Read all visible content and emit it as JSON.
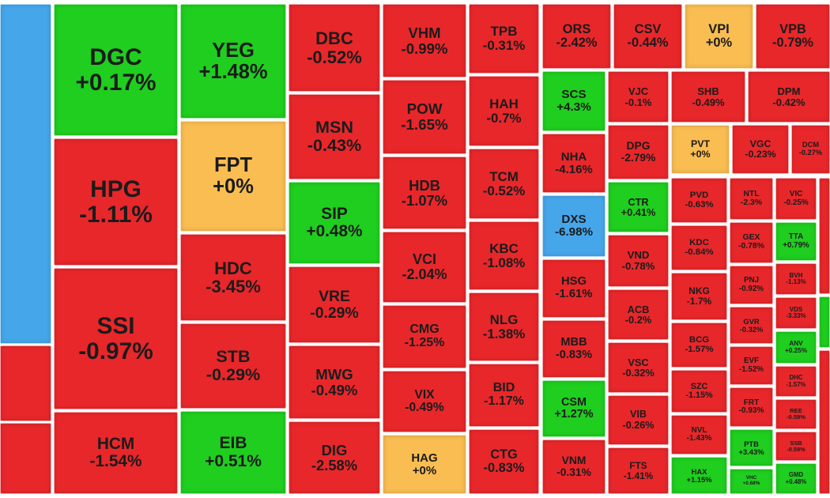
{
  "heatmap": {
    "tiles": [
      {
        "color": "#46a6ea"
      },
      {
        "color": "#e8272b"
      },
      {
        "color": "#e8272b"
      },
      {
        "ticker": "DGC",
        "change": "+0.17%",
        "color": "#1fce1f"
      },
      {
        "ticker": "HPG",
        "change": "-1.11%",
        "color": "#e8272b"
      },
      {
        "ticker": "SSI",
        "change": "-0.97%",
        "color": "#e8272b"
      },
      {
        "ticker": "HCM",
        "change": "-1.54%",
        "color": "#e8272b"
      },
      {
        "ticker": "YEG",
        "change": "+1.48%",
        "color": "#1fce1f"
      },
      {
        "ticker": "FPT",
        "change": "+0%",
        "color": "#f9bd52"
      },
      {
        "ticker": "HDC",
        "change": "-3.45%",
        "color": "#e8272b"
      },
      {
        "ticker": "STB",
        "change": "-0.29%",
        "color": "#e8272b"
      },
      {
        "ticker": "EIB",
        "change": "+0.51%",
        "color": "#1fce1f"
      },
      {
        "ticker": "DBC",
        "change": "-0.52%",
        "color": "#e8272b"
      },
      {
        "ticker": "MSN",
        "change": "-0.43%",
        "color": "#e8272b"
      },
      {
        "ticker": "SIP",
        "change": "+0.48%",
        "color": "#1fce1f"
      },
      {
        "ticker": "VRE",
        "change": "-0.29%",
        "color": "#e8272b"
      },
      {
        "ticker": "MWG",
        "change": "-0.49%",
        "color": "#e8272b"
      },
      {
        "ticker": "DIG",
        "change": "-2.58%",
        "color": "#e8272b"
      },
      {
        "ticker": "VHM",
        "change": "-0.99%",
        "color": "#e8272b"
      },
      {
        "ticker": "POW",
        "change": "-1.65%",
        "color": "#e8272b"
      },
      {
        "ticker": "HDB",
        "change": "-1.07%",
        "color": "#e8272b"
      },
      {
        "ticker": "VCI",
        "change": "-2.04%",
        "color": "#e8272b"
      },
      {
        "ticker": "CMG",
        "change": "-1.25%",
        "color": "#e8272b"
      },
      {
        "ticker": "VIX",
        "change": "-0.49%",
        "color": "#e8272b"
      },
      {
        "ticker": "HAG",
        "change": "+0%",
        "color": "#f9bd52"
      },
      {
        "ticker": "TPB",
        "change": "-0.31%",
        "color": "#e8272b"
      },
      {
        "ticker": "HAH",
        "change": "-0.7%",
        "color": "#e8272b"
      },
      {
        "ticker": "TCM",
        "change": "-0.52%",
        "color": "#e8272b"
      },
      {
        "ticker": "KBC",
        "change": "-1.08%",
        "color": "#e8272b"
      },
      {
        "ticker": "NLG",
        "change": "-1.38%",
        "color": "#e8272b"
      },
      {
        "ticker": "BID",
        "change": "-1.17%",
        "color": "#e8272b"
      },
      {
        "ticker": "CTG",
        "change": "-0.83%",
        "color": "#e8272b"
      },
      {
        "ticker": "ORS",
        "change": "-2.42%",
        "color": "#e8272b"
      },
      {
        "ticker": "CSV",
        "change": "-0.44%",
        "color": "#e8272b"
      },
      {
        "ticker": "VPI",
        "change": "+0%",
        "color": "#f9bd52"
      },
      {
        "ticker": "VPB",
        "change": "-0.79%",
        "color": "#e8272b"
      },
      {
        "ticker": "SCS",
        "change": "+4.3%",
        "color": "#1fce1f"
      },
      {
        "ticker": "NHA",
        "change": "-4.16%",
        "color": "#e8272b"
      },
      {
        "ticker": "DXS",
        "change": "-6.98%",
        "color": "#46a6ea"
      },
      {
        "ticker": "HSG",
        "change": "-1.61%",
        "color": "#e8272b"
      },
      {
        "ticker": "MBB",
        "change": "-0.83%",
        "color": "#e8272b"
      },
      {
        "ticker": "CSM",
        "change": "+1.27%",
        "color": "#1fce1f"
      },
      {
        "ticker": "VNM",
        "change": "-0.31%",
        "color": "#e8272b"
      },
      {
        "ticker": "VJC",
        "change": "-0.1%",
        "color": "#e8272b"
      },
      {
        "ticker": "DPG",
        "change": "-2.79%",
        "color": "#e8272b"
      },
      {
        "ticker": "CTR",
        "change": "+0.41%",
        "color": "#1fce1f"
      },
      {
        "ticker": "VND",
        "change": "-0.78%",
        "color": "#e8272b"
      },
      {
        "ticker": "ACB",
        "change": "-0.2%",
        "color": "#e8272b"
      },
      {
        "ticker": "VSC",
        "change": "-0.32%",
        "color": "#e8272b"
      },
      {
        "ticker": "VIB",
        "change": "-0.26%",
        "color": "#e8272b"
      },
      {
        "ticker": "FTS",
        "change": "-1.41%",
        "color": "#e8272b"
      },
      {
        "ticker": "SHB",
        "change": "-0.49%",
        "color": "#e8272b"
      },
      {
        "ticker": "DPM",
        "change": "-0.42%",
        "color": "#e8272b"
      },
      {
        "ticker": "PVT",
        "change": "+0%",
        "color": "#f9bd52"
      },
      {
        "ticker": "VGC",
        "change": "-0.23%",
        "color": "#e8272b"
      },
      {
        "ticker": "DCM",
        "change": "-0.27%",
        "color": "#e8272b"
      },
      {
        "ticker": "PVD",
        "change": "-0.63%",
        "color": "#e8272b"
      },
      {
        "ticker": "KDC",
        "change": "-0.84%",
        "color": "#e8272b"
      },
      {
        "ticker": "NKG",
        "change": "-1.7%",
        "color": "#e8272b"
      },
      {
        "ticker": "BCG",
        "change": "-1.57%",
        "color": "#e8272b"
      },
      {
        "ticker": "SZC",
        "change": "-1.15%",
        "color": "#e8272b"
      },
      {
        "ticker": "NVL",
        "change": "-1.43%",
        "color": "#e8272b"
      },
      {
        "ticker": "HAX",
        "change": "+1.15%",
        "color": "#1fce1f"
      },
      {
        "ticker": "NTL",
        "change": "-2.3%",
        "color": "#e8272b"
      },
      {
        "ticker": "GEX",
        "change": "-0.78%",
        "color": "#e8272b"
      },
      {
        "ticker": "PNJ",
        "change": "-0.92%",
        "color": "#e8272b"
      },
      {
        "ticker": "GVR",
        "change": "-0.32%",
        "color": "#e8272b"
      },
      {
        "ticker": "EVF",
        "change": "-1.52%",
        "color": "#e8272b"
      },
      {
        "ticker": "FRT",
        "change": "-0.93%",
        "color": "#e8272b"
      },
      {
        "ticker": "PTB",
        "change": "+3.43%",
        "color": "#1fce1f"
      },
      {
        "ticker": "VHC",
        "change": "+0.68%",
        "color": "#1fce1f"
      },
      {
        "ticker": "VIC",
        "change": "-0.25%",
        "color": "#e8272b"
      },
      {
        "ticker": "TTA",
        "change": "+0.79%",
        "color": "#1fce1f"
      },
      {
        "ticker": "BVH",
        "change": "-1.13%",
        "color": "#e8272b"
      },
      {
        "ticker": "VDS",
        "change": "-3.33%",
        "color": "#e8272b"
      },
      {
        "ticker": "ANV",
        "change": "+0.25%",
        "color": "#1fce1f"
      },
      {
        "ticker": "DHC",
        "change": "-1.57%",
        "color": "#e8272b"
      },
      {
        "ticker": "REE",
        "change": "-0.59%",
        "color": "#e8272b"
      },
      {
        "ticker": "SSB",
        "change": "-0.59%",
        "color": "#e8272b"
      },
      {
        "ticker": "GMD",
        "change": "+0.48%",
        "color": "#1fce1f"
      },
      {
        "color": "#e8272b"
      },
      {
        "color": "#1fce1f"
      },
      {
        "color": "#e8272b"
      }
    ]
  }
}
